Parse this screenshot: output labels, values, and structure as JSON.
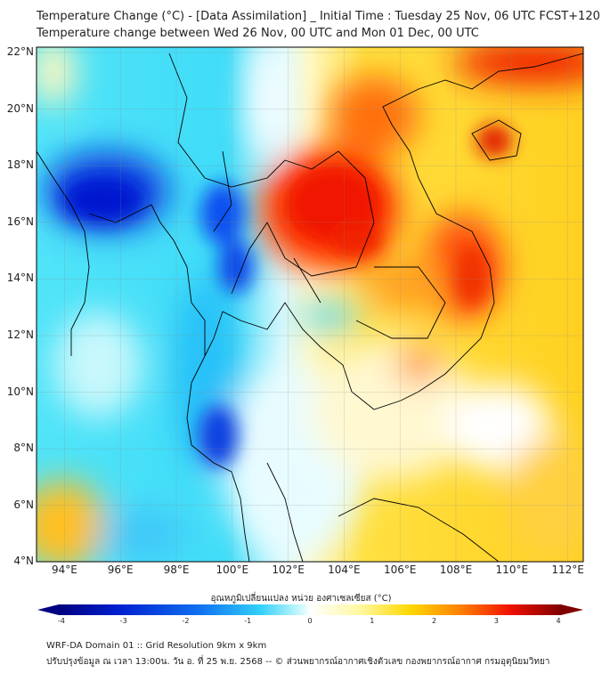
{
  "title": {
    "line1": "Temperature Change (°C) - [Data Assimilation] _ Initial Time : Tuesday 25 Nov, 06 UTC FCST+120",
    "line2": "Temperature change between Wed 26 Nov, 00 UTC and Mon 01 Dec, 00 UTC"
  },
  "map": {
    "lat_labels": [
      "22°N",
      "20°N",
      "18°N",
      "16°N",
      "14°N",
      "12°N",
      "10°N",
      "8°N",
      "6°N",
      "4°N"
    ],
    "lon_labels": [
      "94°E",
      "96°E",
      "98°E",
      "100°E",
      "102°E",
      "104°E",
      "106°E",
      "108°E",
      "110°E",
      "112°E"
    ]
  },
  "colorbar": {
    "label": "อุณหภูมิเปลี่ยนแปลง หน่วย องศาเซลเซียส (°C)",
    "ticks": [
      "-4",
      "-3",
      "-2",
      "-1",
      "0",
      "1",
      "2",
      "3",
      "4"
    ],
    "colors": [
      "#000080",
      "#0010c0",
      "#0060f0",
      "#30c8f8",
      "#c8f8fc",
      "#ffffff",
      "#fff8b0",
      "#ffe000",
      "#ffa000",
      "#ff3000",
      "#e00000",
      "#800000"
    ]
  },
  "footer": {
    "line1": "WRF-DA Domain 01 :: Grid Resolution 9km x 9km",
    "line2": "ปรับปรุงข้อมูล ณ เวลา 13:00น. วัน อ. ที่ 25 พ.ย. 2568 -- © ส่วนพยากรณ์อากาศเชิงตัวเลข กองพยากรณ์อากาศ กรมอุตุนิยมวิทยา"
  }
}
